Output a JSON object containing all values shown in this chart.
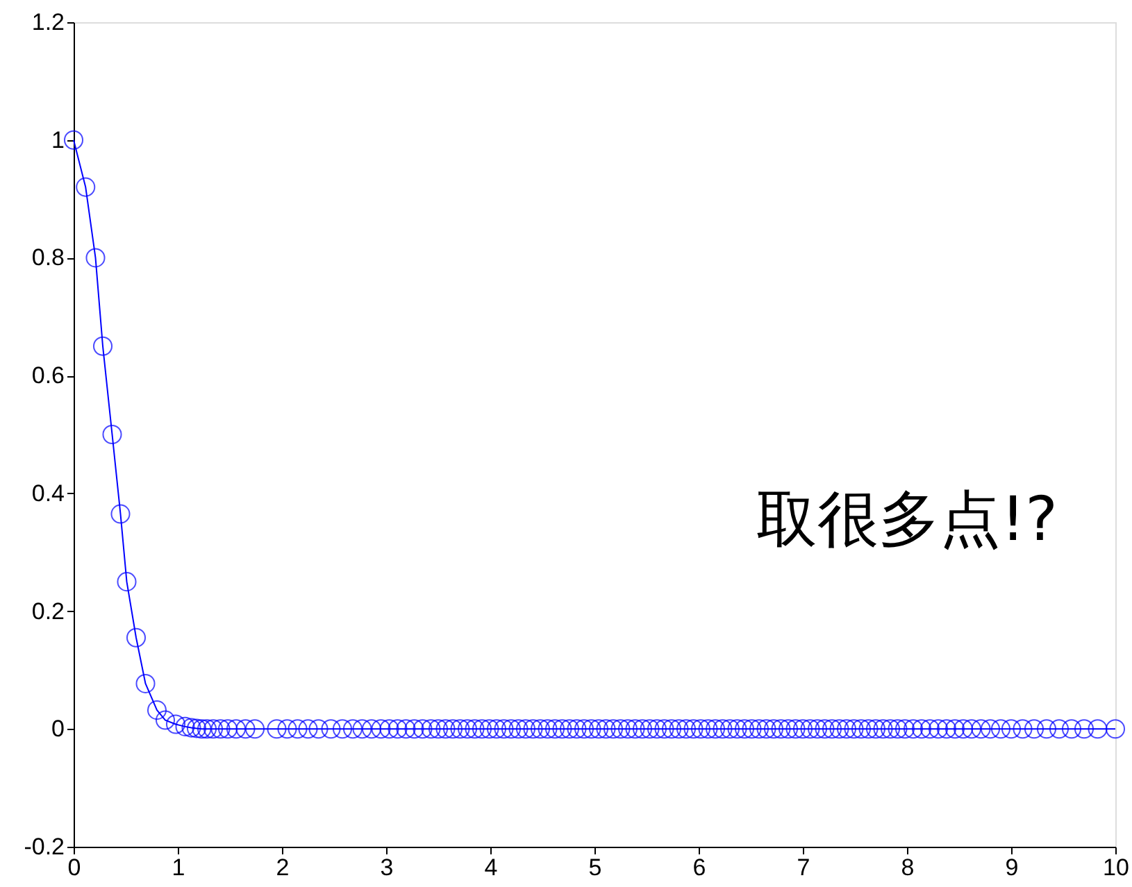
{
  "chart_data": {
    "type": "line",
    "marker": "circle",
    "line_style": "solid",
    "grid": false,
    "xlim": [
      0,
      10
    ],
    "ylim": [
      -0.2,
      1.2
    ],
    "xticks": [
      0,
      1,
      2,
      3,
      4,
      5,
      6,
      7,
      8,
      9,
      10
    ],
    "yticks": [
      -0.2,
      0,
      0.2,
      0.4,
      0.6,
      0.8,
      1,
      1.2
    ],
    "annotations": [
      "取很多点!?"
    ],
    "series": [
      {
        "color": "#0000ff",
        "x": [
          0,
          0.115,
          0.21,
          0.28,
          0.37,
          0.45,
          0.51,
          0.6,
          0.69,
          0.8,
          0.88,
          0.98,
          1.07,
          1.13,
          1.18,
          1.23,
          1.28,
          1.34,
          1.41,
          1.48,
          1.56,
          1.65,
          1.74,
          1.95,
          2.05,
          2.15,
          2.25,
          2.35,
          2.47,
          2.58,
          2.68,
          2.77,
          2.86,
          2.95,
          3.03,
          3.11,
          3.19,
          3.27,
          3.35,
          3.43,
          3.5,
          3.57,
          3.64,
          3.71,
          3.78,
          3.85,
          3.92,
          3.99,
          4.06,
          4.13,
          4.2,
          4.27,
          4.34,
          4.41,
          4.48,
          4.55,
          4.62,
          4.69,
          4.76,
          4.83,
          4.9,
          4.97,
          5.04,
          5.11,
          5.18,
          5.25,
          5.32,
          5.39,
          5.46,
          5.53,
          5.6,
          5.67,
          5.74,
          5.81,
          5.88,
          5.95,
          6.02,
          6.09,
          6.16,
          6.23,
          6.3,
          6.37,
          6.44,
          6.51,
          6.58,
          6.65,
          6.72,
          6.79,
          6.86,
          6.93,
          7.0,
          7.07,
          7.14,
          7.21,
          7.28,
          7.35,
          7.42,
          7.49,
          7.56,
          7.63,
          7.7,
          7.77,
          7.84,
          7.91,
          7.98,
          8.06,
          8.14,
          8.22,
          8.3,
          8.38,
          8.46,
          8.54,
          8.62,
          8.71,
          8.8,
          8.9,
          9.0,
          9.11,
          9.22,
          9.34,
          9.46,
          9.58,
          9.7,
          9.83,
          10
        ],
        "values": [
          1,
          0.92,
          0.8,
          0.65,
          0.5,
          0.365,
          0.25,
          0.155,
          0.077,
          0.032,
          0.015,
          0.008,
          0.004,
          0.002,
          0.001,
          0,
          0,
          0,
          0,
          0,
          0,
          0,
          0,
          0,
          0,
          0,
          0,
          0,
          0,
          0,
          0,
          0,
          0,
          0,
          0,
          0,
          0,
          0,
          0,
          0,
          0,
          0,
          0,
          0,
          0,
          0,
          0,
          0,
          0,
          0,
          0,
          0,
          0,
          0,
          0,
          0,
          0,
          0,
          0,
          0,
          0,
          0,
          0,
          0,
          0,
          0,
          0,
          0,
          0,
          0,
          0,
          0,
          0,
          0,
          0,
          0,
          0,
          0,
          0,
          0,
          0,
          0,
          0,
          0,
          0,
          0,
          0,
          0,
          0,
          0,
          0,
          0,
          0,
          0,
          0,
          0,
          0,
          0,
          0,
          0,
          0,
          0,
          0,
          0,
          0,
          0,
          0,
          0,
          0,
          0,
          0,
          0,
          0,
          0,
          0,
          0,
          0,
          0,
          0,
          0,
          0,
          0,
          0,
          0,
          0
        ]
      }
    ]
  }
}
